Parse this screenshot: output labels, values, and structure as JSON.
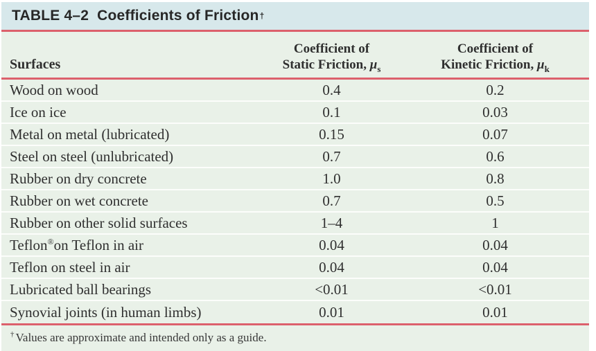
{
  "table": {
    "title": {
      "label": "TABLE 4–2",
      "text": "Coefficients of Friction",
      "dagger": "†"
    },
    "columns": {
      "surfaces": "Surfaces",
      "static": {
        "line1": "Coefficient of",
        "line2": "Static Friction, ",
        "mu": "μ",
        "sub": "s"
      },
      "kinetic": {
        "line1": "Coefficient of",
        "line2": "Kinetic Friction, ",
        "mu": "μ",
        "sub": "k"
      }
    },
    "rows": [
      {
        "surface": "Wood on wood",
        "static": "0.4",
        "kinetic": "0.2"
      },
      {
        "surface": "Ice on ice",
        "static": "0.1",
        "kinetic": "0.03"
      },
      {
        "surface": "Metal on metal (lubricated)",
        "static": "0.15",
        "kinetic": "0.07"
      },
      {
        "surface": "Steel on steel (unlubricated)",
        "static": "0.7",
        "kinetic": "0.6"
      },
      {
        "surface": "Rubber on dry concrete",
        "static": "1.0",
        "kinetic": "0.8"
      },
      {
        "surface": "Rubber on wet concrete",
        "static": "0.7",
        "kinetic": "0.5"
      },
      {
        "surface": "Rubber on other solid surfaces",
        "static": "1–4",
        "kinetic": "1"
      },
      {
        "surface": "Teflon® on Teflon in air",
        "static": "0.04",
        "kinetic": "0.04"
      },
      {
        "surface": "Teflon on steel in air",
        "static": "0.04",
        "kinetic": "0.04"
      },
      {
        "surface": "Lubricated ball bearings",
        "static": "<0.01",
        "kinetic": "<0.01"
      },
      {
        "surface": "Synovial joints (in human limbs)",
        "static": "0.01",
        "kinetic": "0.01"
      }
    ],
    "footnote": {
      "marker": "†",
      "text": "Values are approximate and intended only as a guide."
    },
    "colors": {
      "title_bg": "#d7e8eb",
      "row_bg": "#e9f1e8",
      "rule_red": "#dc606c",
      "text": "#2f2f2f"
    }
  }
}
